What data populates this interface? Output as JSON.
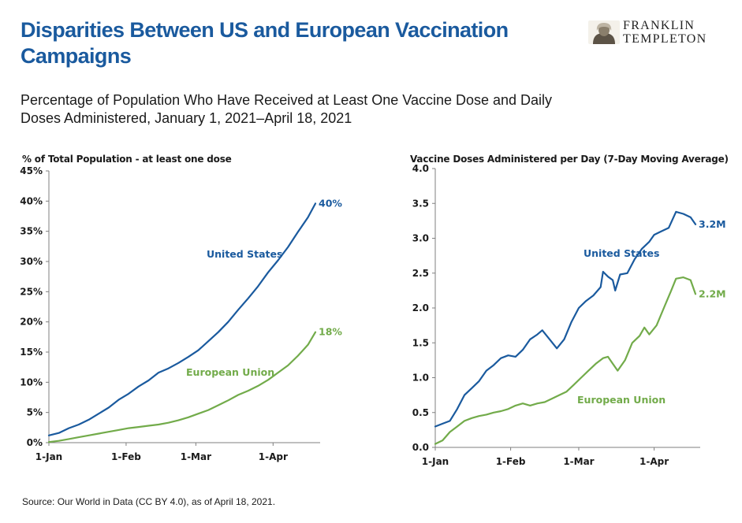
{
  "header": {
    "title": "Disparities Between US and European Vaccination Campaigns",
    "subtitle": "Percentage of Population Who Have Received at Least One Vaccine Dose and Daily Doses Administered, January 1, 2021–April 18, 2021",
    "logo": {
      "line1": "FRANKLIN",
      "line2": "TEMPLETON",
      "icon": "benjamin-franklin-portrait-icon"
    }
  },
  "colors": {
    "title": "#1a5a9e",
    "us": "#1a5a9e",
    "eu": "#72ab4a"
  },
  "footer": {
    "source": "Source: Our World in Data (CC BY 4.0), as of April 18, 2021."
  },
  "chart_data": [
    {
      "id": "left",
      "type": "line",
      "title": "",
      "ylabel": "% of Total Population - at least one dose",
      "xlabel": "",
      "ylim": [
        0,
        45
      ],
      "yticks": [
        0,
        5,
        10,
        15,
        20,
        25,
        30,
        35,
        40,
        45
      ],
      "ytick_labels": [
        "0%",
        "5%",
        "10%",
        "15%",
        "20%",
        "25%",
        "30%",
        "35%",
        "40%",
        "45%"
      ],
      "xlim": [
        "2021-01-01",
        "2021-04-18"
      ],
      "xticks": [
        "2021-01-01",
        "2021-02-01",
        "2021-03-01",
        "2021-04-01"
      ],
      "xtick_labels": [
        "1-Jan",
        "1-Feb",
        "1-Mar",
        "1-Apr"
      ],
      "grid": false,
      "series": [
        {
          "name": "United States",
          "end_label": "40%",
          "points": [
            [
              "2021-01-01",
              1.2
            ],
            [
              "2021-01-05",
              1.6
            ],
            [
              "2021-01-09",
              2.4
            ],
            [
              "2021-01-13",
              3.0
            ],
            [
              "2021-01-17",
              3.8
            ],
            [
              "2021-01-21",
              4.8
            ],
            [
              "2021-01-25",
              5.8
            ],
            [
              "2021-01-29",
              7.1
            ],
            [
              "2021-02-02",
              8.1
            ],
            [
              "2021-02-06",
              9.3
            ],
            [
              "2021-02-10",
              10.3
            ],
            [
              "2021-02-14",
              11.6
            ],
            [
              "2021-02-18",
              12.3
            ],
            [
              "2021-02-22",
              13.2
            ],
            [
              "2021-02-26",
              14.2
            ],
            [
              "2021-03-02",
              15.3
            ],
            [
              "2021-03-06",
              16.8
            ],
            [
              "2021-03-10",
              18.3
            ],
            [
              "2021-03-14",
              20.0
            ],
            [
              "2021-03-18",
              22.0
            ],
            [
              "2021-03-22",
              23.9
            ],
            [
              "2021-03-26",
              25.9
            ],
            [
              "2021-03-30",
              28.2
            ],
            [
              "2021-04-03",
              30.2
            ],
            [
              "2021-04-07",
              32.4
            ],
            [
              "2021-04-11",
              34.9
            ],
            [
              "2021-04-15",
              37.3
            ],
            [
              "2021-04-18",
              39.6
            ]
          ]
        },
        {
          "name": "European Union",
          "end_label": "18%",
          "points": [
            [
              "2021-01-01",
              0.1
            ],
            [
              "2021-01-05",
              0.3
            ],
            [
              "2021-01-09",
              0.6
            ],
            [
              "2021-01-13",
              0.9
            ],
            [
              "2021-01-17",
              1.2
            ],
            [
              "2021-01-21",
              1.5
            ],
            [
              "2021-01-25",
              1.8
            ],
            [
              "2021-01-29",
              2.1
            ],
            [
              "2021-02-02",
              2.4
            ],
            [
              "2021-02-06",
              2.6
            ],
            [
              "2021-02-10",
              2.8
            ],
            [
              "2021-02-14",
              3.0
            ],
            [
              "2021-02-18",
              3.3
            ],
            [
              "2021-02-22",
              3.7
            ],
            [
              "2021-02-26",
              4.2
            ],
            [
              "2021-03-02",
              4.8
            ],
            [
              "2021-03-06",
              5.4
            ],
            [
              "2021-03-10",
              6.2
            ],
            [
              "2021-03-14",
              7.0
            ],
            [
              "2021-03-18",
              7.9
            ],
            [
              "2021-03-22",
              8.6
            ],
            [
              "2021-03-26",
              9.4
            ],
            [
              "2021-03-30",
              10.4
            ],
            [
              "2021-04-03",
              11.6
            ],
            [
              "2021-04-07",
              12.8
            ],
            [
              "2021-04-11",
              14.4
            ],
            [
              "2021-04-15",
              16.2
            ],
            [
              "2021-04-18",
              18.3
            ]
          ]
        }
      ]
    },
    {
      "id": "right",
      "type": "line",
      "title": "",
      "ylabel": "Vaccine Doses Administered per Day (7-Day Moving Average)",
      "xlabel": "",
      "ylim": [
        0,
        4.0
      ],
      "yticks": [
        0,
        0.5,
        1.0,
        1.5,
        2.0,
        2.5,
        3.0,
        3.5,
        4.0
      ],
      "ytick_labels": [
        "0.0",
        "0.5",
        "1.0",
        "1.5",
        "2.0",
        "2.5",
        "3.0",
        "3.5",
        "4.0"
      ],
      "xlim": [
        "2021-01-01",
        "2021-04-18"
      ],
      "xticks": [
        "2021-01-01",
        "2021-02-01",
        "2021-03-01",
        "2021-04-01"
      ],
      "xtick_labels": [
        "1-Jan",
        "1-Feb",
        "1-Mar",
        "1-Apr"
      ],
      "grid": false,
      "series": [
        {
          "name": "United States",
          "end_label": "3.2M",
          "points": [
            [
              "2021-01-01",
              0.3
            ],
            [
              "2021-01-04",
              0.34
            ],
            [
              "2021-01-07",
              0.38
            ],
            [
              "2021-01-10",
              0.55
            ],
            [
              "2021-01-13",
              0.75
            ],
            [
              "2021-01-16",
              0.85
            ],
            [
              "2021-01-19",
              0.95
            ],
            [
              "2021-01-22",
              1.1
            ],
            [
              "2021-01-25",
              1.18
            ],
            [
              "2021-01-28",
              1.28
            ],
            [
              "2021-01-31",
              1.32
            ],
            [
              "2021-02-03",
              1.3
            ],
            [
              "2021-02-06",
              1.4
            ],
            [
              "2021-02-09",
              1.55
            ],
            [
              "2021-02-12",
              1.62
            ],
            [
              "2021-02-14",
              1.68
            ],
            [
              "2021-02-17",
              1.55
            ],
            [
              "2021-02-20",
              1.42
            ],
            [
              "2021-02-23",
              1.55
            ],
            [
              "2021-02-26",
              1.8
            ],
            [
              "2021-03-01",
              2.0
            ],
            [
              "2021-03-04",
              2.1
            ],
            [
              "2021-03-07",
              2.18
            ],
            [
              "2021-03-10",
              2.3
            ],
            [
              "2021-03-11",
              2.52
            ],
            [
              "2021-03-13",
              2.45
            ],
            [
              "2021-03-15",
              2.4
            ],
            [
              "2021-03-16",
              2.25
            ],
            [
              "2021-03-18",
              2.48
            ],
            [
              "2021-03-21",
              2.5
            ],
            [
              "2021-03-24",
              2.7
            ],
            [
              "2021-03-27",
              2.85
            ],
            [
              "2021-03-30",
              2.95
            ],
            [
              "2021-04-01",
              3.05
            ],
            [
              "2021-04-04",
              3.1
            ],
            [
              "2021-04-07",
              3.15
            ],
            [
              "2021-04-10",
              3.38
            ],
            [
              "2021-04-13",
              3.35
            ],
            [
              "2021-04-16",
              3.3
            ],
            [
              "2021-04-18",
              3.2
            ]
          ]
        },
        {
          "name": "European Union",
          "end_label": "2.2M",
          "points": [
            [
              "2021-01-01",
              0.05
            ],
            [
              "2021-01-04",
              0.1
            ],
            [
              "2021-01-07",
              0.22
            ],
            [
              "2021-01-10",
              0.3
            ],
            [
              "2021-01-13",
              0.38
            ],
            [
              "2021-01-16",
              0.42
            ],
            [
              "2021-01-19",
              0.45
            ],
            [
              "2021-01-22",
              0.47
            ],
            [
              "2021-01-25",
              0.5
            ],
            [
              "2021-01-28",
              0.52
            ],
            [
              "2021-01-31",
              0.55
            ],
            [
              "2021-02-03",
              0.6
            ],
            [
              "2021-02-06",
              0.63
            ],
            [
              "2021-02-09",
              0.6
            ],
            [
              "2021-02-12",
              0.63
            ],
            [
              "2021-02-15",
              0.65
            ],
            [
              "2021-02-18",
              0.7
            ],
            [
              "2021-02-21",
              0.75
            ],
            [
              "2021-02-24",
              0.8
            ],
            [
              "2021-02-27",
              0.9
            ],
            [
              "2021-03-02",
              1.0
            ],
            [
              "2021-03-05",
              1.1
            ],
            [
              "2021-03-08",
              1.2
            ],
            [
              "2021-03-11",
              1.28
            ],
            [
              "2021-03-13",
              1.3
            ],
            [
              "2021-03-15",
              1.2
            ],
            [
              "2021-03-17",
              1.1
            ],
            [
              "2021-03-20",
              1.25
            ],
            [
              "2021-03-23",
              1.5
            ],
            [
              "2021-03-26",
              1.6
            ],
            [
              "2021-03-28",
              1.72
            ],
            [
              "2021-03-30",
              1.62
            ],
            [
              "2021-04-02",
              1.75
            ],
            [
              "2021-04-05",
              2.0
            ],
            [
              "2021-04-08",
              2.25
            ],
            [
              "2021-04-10",
              2.42
            ],
            [
              "2021-04-13",
              2.44
            ],
            [
              "2021-04-16",
              2.4
            ],
            [
              "2021-04-18",
              2.2
            ]
          ]
        }
      ]
    }
  ]
}
